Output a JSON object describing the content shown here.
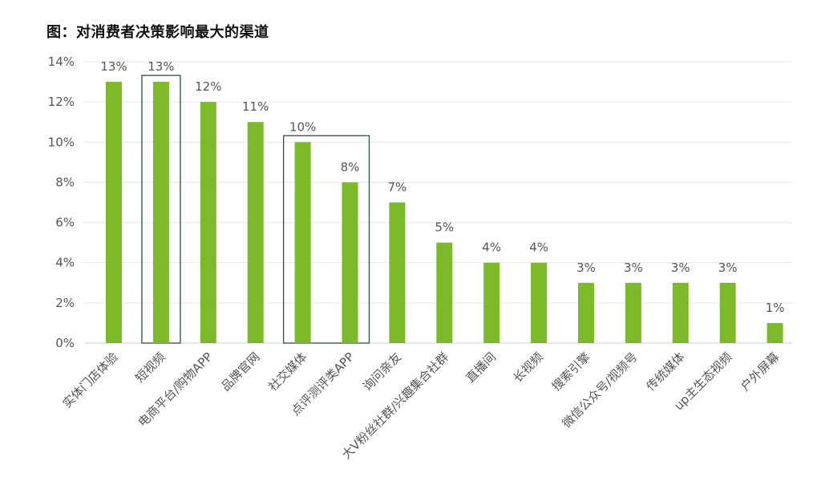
{
  "chart_data": {
    "type": "bar",
    "title": "图：对消费者决策影响最大的渠道",
    "categories": [
      "实体门店体验",
      "短视频",
      "电商平台/购物APP",
      "品牌官网",
      "社交媒体",
      "点评测评类APP",
      "询问亲友",
      "大V粉丝社群/兴趣集合社群",
      "直播间",
      "长视频",
      "搜索引擎",
      "微信公众号/视频号",
      "传统媒体",
      "up主生态视频",
      "户外屏幕"
    ],
    "values": [
      13,
      13,
      12,
      11,
      10,
      8,
      7,
      5,
      4,
      4,
      3,
      3,
      3,
      3,
      1
    ],
    "value_labels": [
      "13%",
      "13%",
      "12%",
      "11%",
      "10%",
      "8%",
      "7%",
      "5%",
      "4%",
      "4%",
      "3%",
      "3%",
      "3%",
      "3%",
      "1%"
    ],
    "y_ticks": [
      "0%",
      "2%",
      "4%",
      "6%",
      "8%",
      "10%",
      "12%",
      "14%"
    ],
    "ylim": [
      0,
      14
    ],
    "grid": true,
    "bar_color": "#7dba2a",
    "highlight_color": "#2f4f3f",
    "highlight_groups": [
      [
        1
      ],
      [
        4,
        5
      ]
    ]
  }
}
